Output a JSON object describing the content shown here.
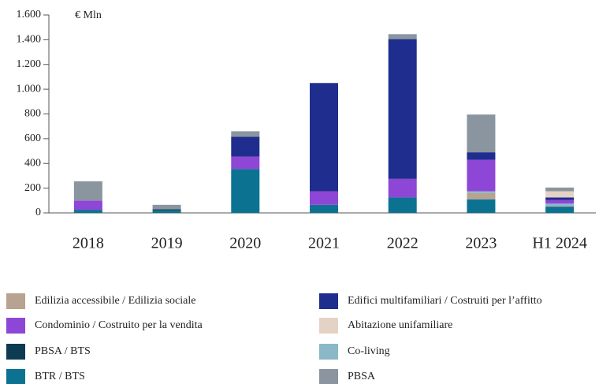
{
  "chart_data": {
    "type": "stacked_bar",
    "unit_label": "€ Mln",
    "categories": [
      "2018",
      "2019",
      "2020",
      "2021",
      "2022",
      "2023",
      "H1 2024"
    ],
    "series": [
      {
        "name": "BTR / BTS",
        "color": "#0b7391",
        "values": [
          25,
          20,
          355,
          65,
          125,
          110,
          45
        ]
      },
      {
        "name": "PBSA / BTS",
        "color": "#0d3c52",
        "values": [
          0,
          10,
          0,
          0,
          0,
          0,
          5
        ]
      },
      {
        "name": "Edilizia accessibile / Edilizia sociale",
        "color": "#b8a290",
        "values": [
          0,
          0,
          0,
          0,
          0,
          50,
          0
        ]
      },
      {
        "name": "Co-living",
        "color": "#8ab8c7",
        "values": [
          0,
          0,
          0,
          0,
          0,
          15,
          25
        ]
      },
      {
        "name": "Condominio / Costruito per la vendita",
        "color": "#8e46d6",
        "values": [
          75,
          0,
          100,
          110,
          150,
          255,
          30
        ]
      },
      {
        "name": "Edifici multifamiliari / Costruiti per l’affitto",
        "color": "#1f2e8e",
        "values": [
          0,
          0,
          160,
          875,
          1130,
          60,
          20
        ]
      },
      {
        "name": "Abitazione unifamiliare",
        "color": "#e4d2c5",
        "values": [
          0,
          0,
          0,
          0,
          0,
          0,
          50
        ]
      },
      {
        "name": "PBSA",
        "color": "#8a959f",
        "values": [
          155,
          35,
          45,
          0,
          40,
          305,
          30
        ]
      }
    ],
    "ylim": [
      0,
      1600
    ],
    "yticks": [
      0,
      200,
      400,
      600,
      800,
      {
        "value": 1000,
        "label": "1.000"
      },
      {
        "value": 1200,
        "label": "1.200"
      },
      {
        "value": 1400,
        "label": "1.400"
      },
      {
        "value": 1600,
        "label": "1.600"
      }
    ]
  }
}
